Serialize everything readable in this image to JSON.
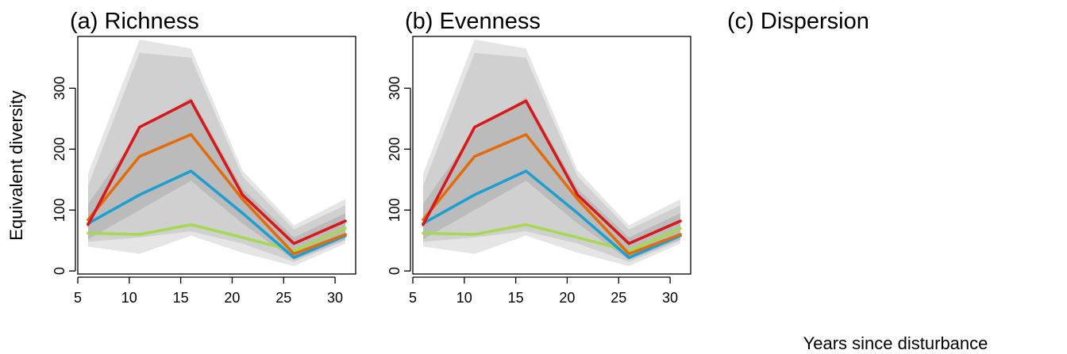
{
  "figure": {
    "ylabel": "Equivalent diversity",
    "xlabel": "Years since disturbance"
  },
  "chart_data": [
    {
      "type": "line",
      "title": "(a) Richness",
      "x": [
        6,
        11,
        16,
        21,
        26,
        31
      ],
      "xticks": [
        5,
        10,
        15,
        20,
        25,
        30
      ],
      "yticks": [
        0,
        100,
        200,
        300
      ],
      "xlim": [
        5,
        32
      ],
      "ylim": [
        -5,
        385
      ],
      "series": [
        {
          "color": "#a6d854",
          "values": [
            62,
            60,
            76,
            55,
            33,
            70
          ]
        },
        {
          "color": "#1f9ed1",
          "values": [
            78,
            125,
            164,
            95,
            22,
            58
          ]
        },
        {
          "color": "#e36c0a",
          "values": [
            84,
            188,
            224,
            118,
            28,
            60
          ]
        },
        {
          "color": "#d7191c",
          "values": [
            76,
            236,
            279,
            125,
            45,
            82
          ]
        }
      ],
      "bands": [
        {
          "color": "#dcdcdc",
          "lower": [
            40,
            28,
            58,
            30,
            8,
            45
          ],
          "upper": [
            160,
            380,
            365,
            165,
            75,
            118
          ]
        },
        {
          "color": "#c8c8c8",
          "lower": [
            48,
            55,
            65,
            45,
            15,
            50
          ],
          "upper": [
            140,
            358,
            350,
            155,
            68,
            108
          ]
        },
        {
          "color": "#b4b4b4",
          "lower": [
            52,
            100,
            148,
            78,
            18,
            52
          ],
          "upper": [
            110,
            230,
            285,
            135,
            55,
            95
          ]
        }
      ]
    },
    {
      "type": "line",
      "title": "(b) Evenness",
      "x": [
        6,
        11,
        16,
        21,
        26,
        31
      ],
      "xticks": [
        5,
        10,
        15,
        20,
        25,
        30
      ],
      "yticks": [
        0,
        100,
        200,
        300
      ],
      "xlim": [
        5,
        32
      ],
      "ylim": [
        -5,
        385
      ],
      "series": [
        {
          "color": "#a6d854",
          "values": [
            62,
            60,
            76,
            55,
            33,
            70
          ]
        },
        {
          "color": "#1f9ed1",
          "values": [
            78,
            125,
            164,
            95,
            22,
            58
          ]
        },
        {
          "color": "#e36c0a",
          "values": [
            84,
            188,
            224,
            118,
            28,
            60
          ]
        },
        {
          "color": "#d7191c",
          "values": [
            76,
            236,
            279,
            125,
            45,
            82
          ]
        }
      ],
      "bands": [
        {
          "color": "#dcdcdc",
          "lower": [
            40,
            28,
            58,
            30,
            8,
            45
          ],
          "upper": [
            160,
            380,
            365,
            165,
            75,
            118
          ]
        },
        {
          "color": "#c8c8c8",
          "lower": [
            48,
            55,
            65,
            45,
            15,
            50
          ],
          "upper": [
            140,
            358,
            350,
            155,
            68,
            108
          ]
        },
        {
          "color": "#b4b4b4",
          "lower": [
            52,
            100,
            148,
            78,
            18,
            52
          ],
          "upper": [
            110,
            230,
            285,
            135,
            55,
            95
          ]
        }
      ]
    },
    {
      "type": "line",
      "title": "(c) Dispersion",
      "series": []
    }
  ]
}
